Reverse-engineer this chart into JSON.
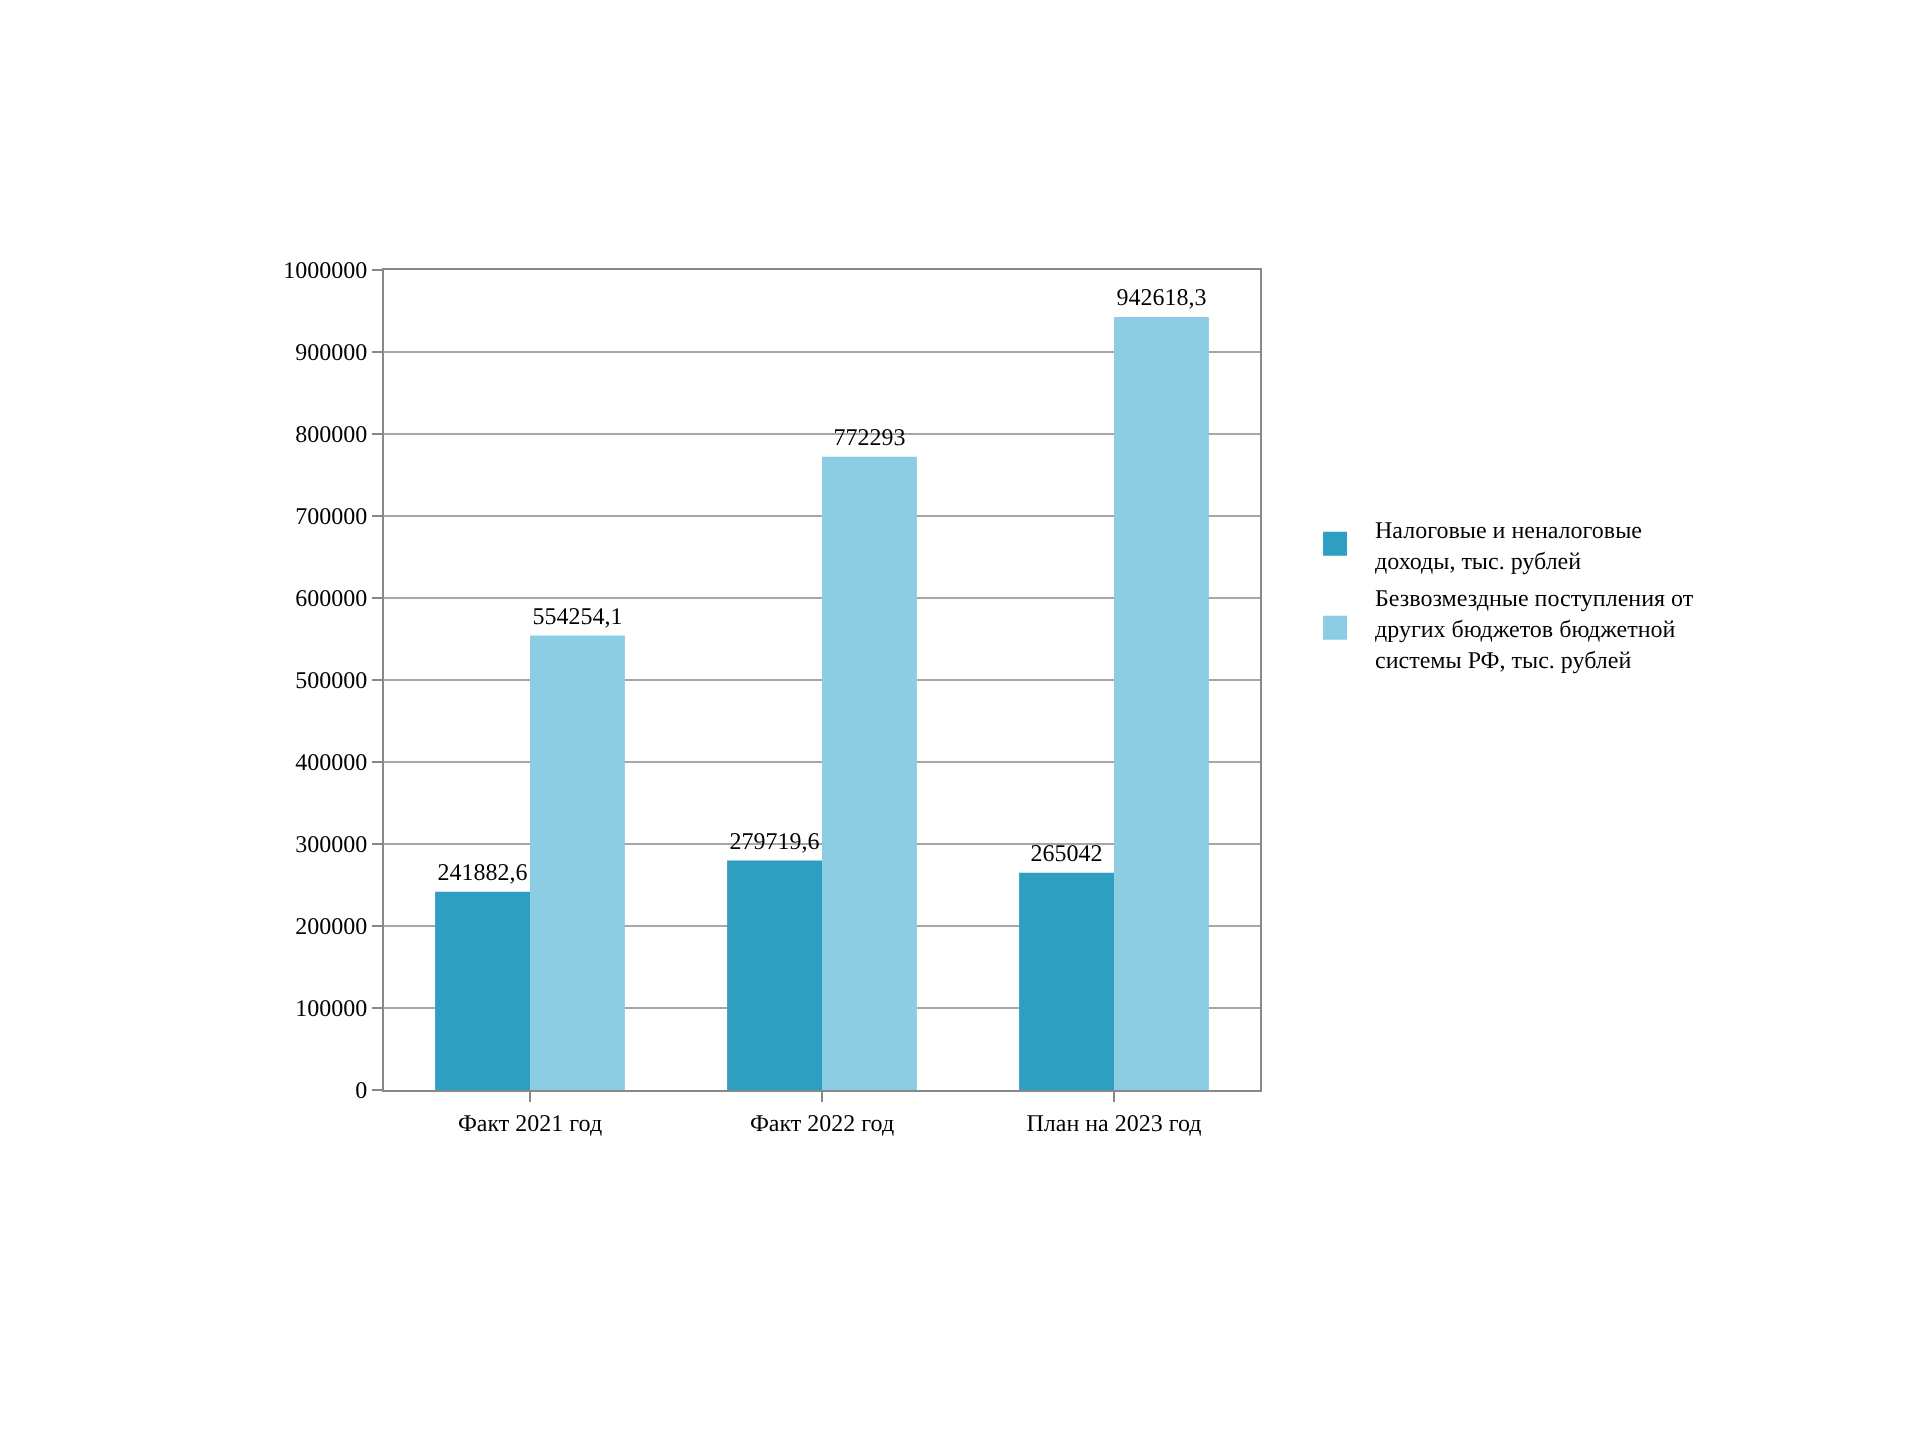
{
  "chart_data": {
    "type": "bar",
    "categories": [
      "Факт 2021 год",
      "Факт 2022 год",
      "План на 2023 год"
    ],
    "series": [
      {
        "name": "Налоговые и неналоговые доходы, тыс. рублей",
        "color": "#2e9fc0",
        "values": [
          241882.6,
          279719.6,
          265042
        ],
        "value_labels": [
          "241882,6",
          "279719,6",
          "265042"
        ]
      },
      {
        "name": "Безвозмездные поступления от других бюджетов бюджетной системы РФ, тыс. рублей",
        "color": "#8dcde4",
        "values": [
          554254.1,
          772293,
          942618.3
        ],
        "value_labels": [
          "554254,1",
          "772293",
          "942618,3"
        ]
      }
    ],
    "ylim": [
      0,
      1000000
    ],
    "yticks": [
      0,
      100000,
      200000,
      300000,
      400000,
      500000,
      600000,
      700000,
      800000,
      900000,
      1000000
    ],
    "grid": "y",
    "legend": "right"
  }
}
